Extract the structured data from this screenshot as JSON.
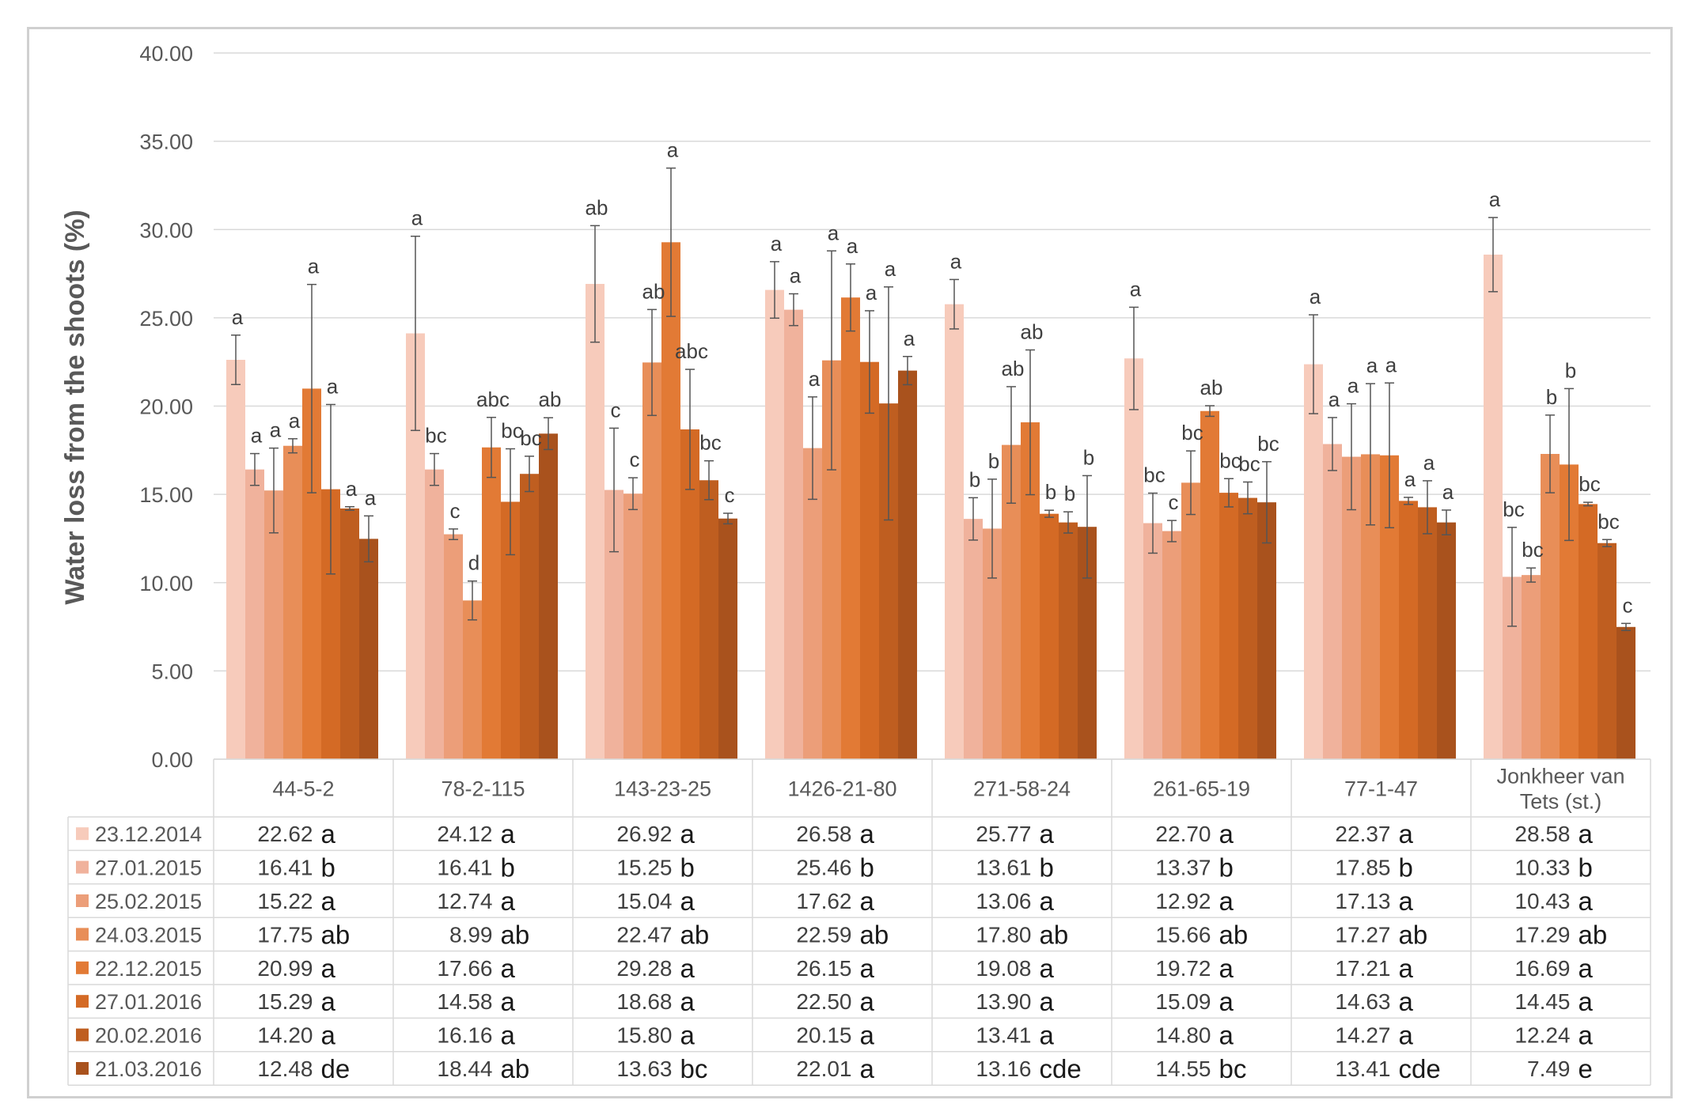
{
  "chart_data": {
    "type": "bar",
    "ylabel": "Water loss from the shoots (%)",
    "xlabel": "",
    "ylim": [
      0,
      40
    ],
    "yticks": [
      "0.00",
      "5.00",
      "10.00",
      "15.00",
      "20.00",
      "25.00",
      "30.00",
      "35.00",
      "40.00"
    ],
    "grid": true,
    "legend": "table-below",
    "categories": [
      [
        "44-5-2"
      ],
      [
        "78-2-115"
      ],
      [
        "143-23-25"
      ],
      [
        "1426-21-80"
      ],
      [
        "271-58-24"
      ],
      [
        "261-65-19"
      ],
      [
        "77-1-47"
      ],
      [
        "Jonkheer van",
        "Tets (st.)"
      ]
    ],
    "series": [
      {
        "name": "23.12.2014",
        "color": "#f7cbbb",
        "values": [
          22.62,
          24.12,
          26.92,
          26.58,
          25.77,
          22.7,
          22.37,
          28.58
        ],
        "value_labels": [
          "22.62",
          "24.12",
          "26.92",
          "26.58",
          "25.77",
          "22.70",
          "22.37",
          "28.58"
        ],
        "errors": [
          1.4,
          5.5,
          3.3,
          1.6,
          1.4,
          2.9,
          2.8,
          2.1
        ],
        "bar_letters": [
          "a",
          "a",
          "ab",
          "a",
          "a",
          "a",
          "a",
          "a"
        ],
        "table_letter": "a"
      },
      {
        "name": "27.01.2015",
        "color": "#f0b29c",
        "values": [
          16.41,
          16.41,
          15.25,
          25.46,
          13.61,
          13.37,
          17.85,
          10.33
        ],
        "value_labels": [
          "16.41",
          "16.41",
          "15.25",
          "25.46",
          "13.61",
          "13.37",
          "17.85",
          "10.33"
        ],
        "errors": [
          0.9,
          0.9,
          3.5,
          0.9,
          1.2,
          1.7,
          1.5,
          2.8
        ],
        "bar_letters": [
          "a",
          "bc",
          "c",
          "a",
          "b",
          "bc",
          "a",
          "bc"
        ],
        "table_letter": "b"
      },
      {
        "name": "25.02.2015",
        "color": "#ec9e79",
        "values": [
          15.22,
          12.74,
          15.04,
          17.62,
          13.06,
          12.92,
          17.13,
          10.43
        ],
        "value_labels": [
          "15.22",
          "12.74",
          "15.04",
          "17.62",
          "13.06",
          "12.92",
          "17.13",
          "10.43"
        ],
        "errors": [
          2.4,
          0.3,
          0.9,
          2.9,
          2.8,
          0.6,
          3.0,
          0.4
        ],
        "bar_letters": [
          "a",
          "c",
          "c",
          "a",
          "b",
          "c",
          "a",
          "bc"
        ],
        "table_letter": "a"
      },
      {
        "name": "24.03.2015",
        "color": "#e88e58",
        "values": [
          17.75,
          8.99,
          22.47,
          22.59,
          17.8,
          15.66,
          17.27,
          17.29
        ],
        "value_labels": [
          "17.75",
          "8.99",
          "22.47",
          "22.59",
          "17.80",
          "15.66",
          "17.27",
          "17.29"
        ],
        "errors": [
          0.4,
          1.1,
          3.0,
          6.2,
          3.3,
          1.8,
          4.0,
          2.2
        ],
        "bar_letters": [
          "a",
          "d",
          "ab",
          "a",
          "ab",
          "bc",
          "a",
          "b"
        ],
        "table_letter": "ab"
      },
      {
        "name": "22.12.2015",
        "color": "#e27a35",
        "values": [
          20.99,
          17.66,
          29.28,
          26.15,
          19.08,
          19.72,
          17.21,
          16.69
        ],
        "value_labels": [
          "20.99",
          "17.66",
          "29.28",
          "26.15",
          "19.08",
          "19.72",
          "17.21",
          "16.69"
        ],
        "errors": [
          5.9,
          1.7,
          4.2,
          1.9,
          4.1,
          0.3,
          4.1,
          4.3
        ],
        "bar_letters": [
          "a",
          "abc",
          "a",
          "a",
          "ab",
          "ab",
          "a",
          "b"
        ],
        "table_letter": "a"
      },
      {
        "name": "27.01.2016",
        "color": "#d46a25",
        "values": [
          15.29,
          14.58,
          18.68,
          22.5,
          13.9,
          15.09,
          14.63,
          14.45
        ],
        "value_labels": [
          "15.29",
          "14.58",
          "18.68",
          "22.50",
          "13.90",
          "15.09",
          "14.63",
          "14.45"
        ],
        "errors": [
          4.8,
          3.0,
          3.4,
          2.9,
          0.2,
          0.8,
          0.2,
          0.1
        ],
        "bar_letters": [
          "a",
          "bc",
          "abc",
          "a",
          "b",
          "bc",
          "a",
          "bc"
        ],
        "table_letter": "a"
      },
      {
        "name": "20.02.2016",
        "color": "#bf5e20",
        "values": [
          14.2,
          16.16,
          15.8,
          20.15,
          13.41,
          14.8,
          14.27,
          12.24
        ],
        "value_labels": [
          "14.20",
          "16.16",
          "15.80",
          "20.15",
          "13.41",
          "14.80",
          "14.27",
          "12.24"
        ],
        "errors": [
          0.1,
          1.0,
          1.1,
          6.6,
          0.6,
          0.9,
          1.5,
          0.2
        ],
        "bar_letters": [
          "a",
          "bc",
          "bc",
          "a",
          "b",
          "bc",
          "a",
          "bc"
        ],
        "table_letter": "a"
      },
      {
        "name": "21.03.2016",
        "color": "#a9521d",
        "values": [
          12.48,
          18.44,
          13.63,
          22.01,
          13.16,
          14.55,
          13.41,
          7.49
        ],
        "value_labels": [
          "12.48",
          "18.44",
          "13.63",
          "22.01",
          "13.16",
          "14.55",
          "13.41",
          "7.49"
        ],
        "errors": [
          1.3,
          0.9,
          0.3,
          0.8,
          2.9,
          2.3,
          0.7,
          0.2
        ],
        "bar_letters": [
          "a",
          "ab",
          "c",
          "a",
          "b",
          "bc",
          "a",
          "c"
        ],
        "table_letter_by_category": [
          "de",
          "ab",
          "bc",
          "a",
          "cde",
          "bc",
          "cde",
          "e"
        ]
      }
    ]
  }
}
